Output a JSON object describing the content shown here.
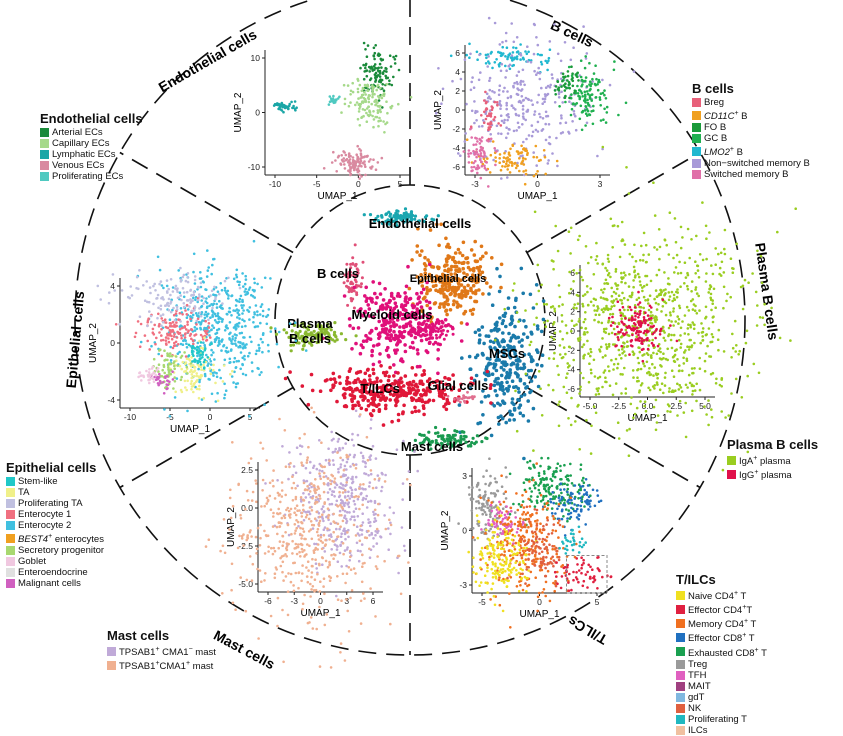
{
  "sections": [
    {
      "name": "Endothelial cells"
    },
    {
      "name": "B cells"
    },
    {
      "name": "Plasma B cells"
    },
    {
      "name": "T/ILCs"
    },
    {
      "name": "Mast cells"
    },
    {
      "name": "Epithelial cells"
    }
  ],
  "center": {
    "labels": [
      "Endothelial cells",
      "B cells",
      "Epithelial cells",
      "Plasma",
      "B cells",
      "Myeloid cells",
      "MSCs",
      "T/ILCs",
      "Glial cells",
      "Mast cells"
    ]
  },
  "axes": {
    "x": "UMAP_1",
    "y": "UMAP_2"
  },
  "panels": {
    "endothelial": {
      "xticks": [
        "-10",
        "-5",
        "0",
        "5"
      ],
      "yticks": [
        "10",
        "0",
        "-10"
      ]
    },
    "bcells": {
      "xticks": [
        "-3",
        "0",
        "3"
      ],
      "yticks": [
        "6",
        "4",
        "2",
        "0",
        "-2",
        "-4",
        "-6"
      ]
    },
    "plasma": {
      "xticks": [
        "-5.0",
        "-2.5",
        "0.0",
        "2.5",
        "5.0"
      ],
      "yticks": [
        "6",
        "4",
        "2",
        "0",
        "-2",
        "-4",
        "-6"
      ]
    },
    "tilc": {
      "xticks": [
        "-5",
        "0",
        "5"
      ],
      "yticks": [
        "3",
        "0",
        "-3"
      ]
    },
    "mast": {
      "xticks": [
        "-6",
        "-3",
        "0",
        "3",
        "6"
      ],
      "yticks": [
        "2.5",
        "0.0",
        "-2.5",
        "-5.0"
      ]
    },
    "epithelial": {
      "xticks": [
        "-10",
        "-5",
        "0",
        "5"
      ],
      "yticks": [
        "4",
        "0",
        "-4"
      ]
    }
  },
  "legends": {
    "endothelial": {
      "title": "Endothelial cells",
      "items": [
        {
          "label": "Arterial ECs",
          "color": "#1a8a3a"
        },
        {
          "label": "Capillary ECs",
          "color": "#a6d98a"
        },
        {
          "label": "Lymphatic ECs",
          "color": "#1aa6a6"
        },
        {
          "label": "Venous ECs",
          "color": "#d98aa0"
        },
        {
          "label": "Proliferating ECs",
          "color": "#4fc9c0"
        }
      ]
    },
    "bcells": {
      "title": "B cells",
      "items": [
        {
          "label": "Breg",
          "color": "#e8607a"
        },
        {
          "label": "CD11C",
          "sup": "+",
          "suffix": " B",
          "italic": true,
          "color": "#f0a020"
        },
        {
          "label": "FO B",
          "color": "#1a9a3a"
        },
        {
          "label": "GC B",
          "color": "#20b050"
        },
        {
          "label": "LMO2",
          "sup": "+",
          "suffix": " B",
          "italic": true,
          "color": "#20b8d0"
        },
        {
          "label": "Non−switched memory B",
          "color": "#a89ad8"
        },
        {
          "label": "Switched memory B",
          "color": "#e070a8"
        }
      ]
    },
    "plasma": {
      "title": "Plasma B cells",
      "items": [
        {
          "label": "IgA",
          "sup": "+",
          "suffix": " plasma",
          "color": "#9acd20"
        },
        {
          "label": "IgG",
          "sup": "+",
          "suffix": " plasma",
          "color": "#e0104a"
        }
      ]
    },
    "tilc": {
      "title": "T/ILCs",
      "items": [
        {
          "label": "Naive CD4",
          "sup": "+",
          "suffix": " T",
          "color": "#f0e020"
        },
        {
          "label": "Effector CD4",
          "sup": "+",
          "suffix": "T",
          "color": "#e02040"
        },
        {
          "label": "Memory CD4",
          "sup": "+",
          "suffix": " T",
          "color": "#f07020"
        },
        {
          "label": "Effector CD8",
          "sup": "+",
          "suffix": " T",
          "color": "#2070c0"
        },
        {
          "label": "Exhausted CD8",
          "sup": "+",
          "suffix": " T",
          "color": "#1aa050"
        },
        {
          "label": "Treg",
          "color": "#9a9a9a"
        },
        {
          "label": "TFH",
          "color": "#e060c0"
        },
        {
          "label": "MAIT",
          "color": "#a04080"
        },
        {
          "label": "gdT",
          "color": "#80b8e0"
        },
        {
          "label": "NK",
          "color": "#e06040"
        },
        {
          "label": "Proliferating T",
          "color": "#20b8c0"
        },
        {
          "label": "ILCs",
          "color": "#f0c0a0"
        }
      ]
    },
    "mast": {
      "title": "Mast cells",
      "items": [
        {
          "label": "TPSAB1",
          "sup": "+",
          "suffix": " CMA1",
          "sup2": "−",
          "suffix2": " mast",
          "color": "#c0aad8"
        },
        {
          "label": "TPSAB1",
          "sup": "+",
          "suffix": "CMA1",
          "sup2": "+",
          "suffix2": " mast",
          "color": "#f0b090"
        }
      ]
    },
    "epithelial": {
      "title": "Epithelial cells",
      "items": [
        {
          "label": "Stem-like",
          "color": "#20c8c8"
        },
        {
          "label": "TA",
          "color": "#f0f08a"
        },
        {
          "label": "Proliferating TA",
          "color": "#c0c0e0"
        },
        {
          "label": "Enterocyte 1",
          "color": "#f07080"
        },
        {
          "label": "Enterocyte 2",
          "color": "#40c0e0"
        },
        {
          "label": "BEST4",
          "sup": "+",
          "suffix": " enterocytes",
          "italic": true,
          "color": "#f0a020"
        },
        {
          "label": "Secretory progenitor",
          "color": "#a8d870"
        },
        {
          "label": "Goblet",
          "color": "#f0c8e0"
        },
        {
          "label": "Enteroendocrine",
          "color": "#e0e0e0"
        },
        {
          "label": "Malignant cells",
          "color": "#d060c0"
        }
      ]
    }
  },
  "colors": {
    "myeloid": "#e0107a",
    "epithelial_main": "#e07818",
    "endothelial_main": "#1aa6b0",
    "bcell_main": "#e05078",
    "plasma_main": "#8ab830",
    "msc": "#1a7aaa",
    "tilc_main": "#e01838",
    "glial": "#e07090",
    "mast_main": "#1a9a50"
  }
}
